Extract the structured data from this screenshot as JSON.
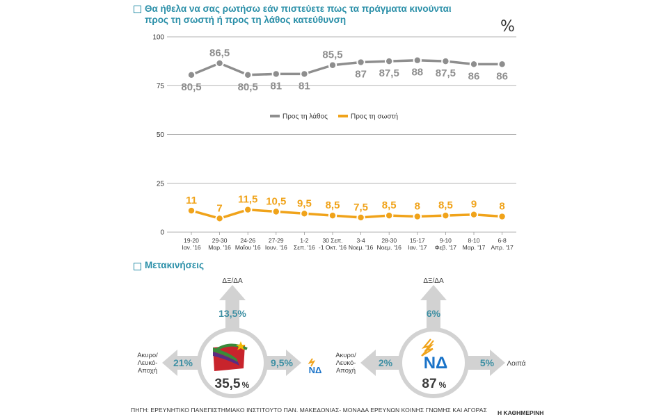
{
  "header": {
    "title_line1": "Θα ήθελα να σας ρωτήσω εάν πιστεύετε πως τα πράγματα κινούνται",
    "title_line2": "προς τη σωστή ή προς τη λάθος κατεύθυνση",
    "unit_symbol": "%"
  },
  "chart_data": {
    "type": "line",
    "title": "Θα ήθελα να σας ρωτήσω εάν πιστεύετε πως τα πράγματα κινούνται προς τη σωστή ή προς τη λάθος κατεύθυνση",
    "ylabel": "%",
    "ylim": [
      0,
      100
    ],
    "yticks": [
      0,
      25,
      50,
      75,
      100
    ],
    "legend_position": "center",
    "categories": [
      [
        "19-20",
        "Ιαν. '16"
      ],
      [
        "29-30",
        "Μαρ. '16"
      ],
      [
        "24-26",
        "Μαΐου '16"
      ],
      [
        "27-29",
        "Ιουν. '16"
      ],
      [
        "1-2",
        "Σεπ. '16"
      ],
      [
        "30 Σεπ.",
        "-1 Οκτ. '16"
      ],
      [
        "3-4",
        "Νοεμ. '16"
      ],
      [
        "28-30",
        "Νοεμ. '16"
      ],
      [
        "15-17",
        "Ιαν. '17"
      ],
      [
        "9-10",
        "Φεβ. '17"
      ],
      [
        "8-10",
        "Μαρ. '17"
      ],
      [
        "6-8",
        "Απρ. '17"
      ]
    ],
    "series": [
      {
        "name": "Προς τη λάθος",
        "color": "#8e8e8e",
        "values": [
          80.5,
          86.5,
          80.5,
          81,
          81,
          85.5,
          87,
          87.5,
          88,
          87.5,
          86,
          86
        ],
        "labels": [
          "80,5",
          "86,5",
          "80,5",
          "81",
          "81",
          "85,5",
          "87",
          "87,5",
          "88",
          "87,5",
          "86",
          "86"
        ],
        "label_pos": [
          "below",
          "above",
          "below",
          "below",
          "below",
          "above",
          "below",
          "below",
          "below",
          "below",
          "below",
          "below"
        ]
      },
      {
        "name": "Προς τη σωστή",
        "color": "#f0a31a",
        "values": [
          11,
          7,
          11.5,
          10.5,
          9.5,
          8.5,
          7.5,
          8.5,
          8,
          8.5,
          9,
          8
        ],
        "labels": [
          "11",
          "7",
          "11,5",
          "10,5",
          "9,5",
          "8,5",
          "7,5",
          "8,5",
          "8",
          "8,5",
          "9",
          "8"
        ],
        "label_pos": [
          "above",
          "above",
          "above",
          "above",
          "above",
          "above",
          "above",
          "above",
          "above",
          "above",
          "above",
          "above"
        ]
      }
    ]
  },
  "movements": {
    "title": "Μετακινήσεις",
    "syriza": {
      "center_value": "35,5",
      "center_unit": "%",
      "up_label": "ΔΞ/ΔΑ",
      "up_value": "13,5%",
      "left_label_lines": [
        "Ακυρο/",
        "Λευκό-",
        "Αποχή"
      ],
      "left_value": "21%",
      "right_value": "9,5%",
      "right_logo_text": "ΝΔ"
    },
    "nd": {
      "logo_text": "ΝΔ",
      "center_value": "87",
      "center_unit": "%",
      "up_label": "ΔΞ/ΔΑ",
      "up_value": "6%",
      "left_label_lines": [
        "Ακυρο/",
        "Λευκό-",
        "Αποχή"
      ],
      "left_value": "2%",
      "right_value": "5%",
      "right_label": "Λοιπά"
    }
  },
  "footer": {
    "source": "ΠΗΓΗ: ΕΡΕΥΝΗΤΙΚΟ ΠΑΝΕΠΙΣΤΗΜΙΑΚΟ ΙΝΣΤΙΤΟΥΤΟ ΠΑΝ. ΜΑΚΕΔΟΝΙΑΣ- ΜΟΝΑΔΑ ΕΡΕΥΝΩΝ ΚΟΙΝΗΣ ΓΝΩΜΗΣ ΚΑΙ ΑΓΟΡΑΣ",
    "publisher": "Η ΚΑΘΗΜΕΡΙΝΗ"
  },
  "colors": {
    "accent": "#2a8fa8",
    "arrow": "#d2d2d2",
    "value_text": "#3d8fa3",
    "syriza_red": "#c8242c",
    "syriza_green": "#3a8a3a",
    "syriza_purple": "#5a2d82",
    "syriza_star": "#f2b705",
    "nd_blue": "#1a73c8",
    "nd_yellow": "#f0a31a"
  }
}
